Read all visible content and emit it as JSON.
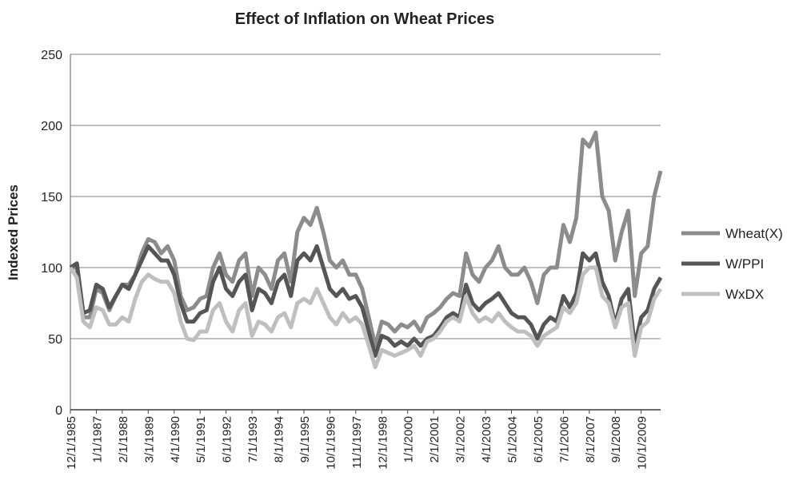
{
  "chart_data": {
    "type": "line",
    "title": "Effect of Inflation on Wheat Prices",
    "y_label": "Indexed Prices",
    "categories": [
      "12/1/1985",
      null,
      null,
      null,
      "1/1/1987",
      null,
      null,
      null,
      "2/1/1988",
      null,
      null,
      null,
      "3/1/1989",
      null,
      null,
      null,
      "4/1/1990",
      null,
      null,
      null,
      "5/1/1991",
      null,
      null,
      null,
      "6/1/1992",
      null,
      null,
      null,
      "7/1/1993",
      null,
      null,
      null,
      "8/1/1994",
      null,
      null,
      null,
      "9/1/1995",
      null,
      null,
      null,
      "10/1/1996",
      null,
      null,
      null,
      "11/1/1997",
      null,
      null,
      null,
      "12/1/1998",
      null,
      null,
      null,
      "1/1/2000",
      null,
      null,
      null,
      "2/1/2001",
      null,
      null,
      null,
      "3/1/2002",
      null,
      null,
      null,
      "4/1/2003",
      null,
      null,
      null,
      "5/1/2004",
      null,
      null,
      null,
      "6/1/2005",
      null,
      null,
      null,
      "7/1/2006",
      null,
      null,
      null,
      "8/1/2007",
      null,
      null,
      null,
      "9/1/2008",
      null,
      null,
      null,
      "10/1/2009",
      null,
      null,
      null
    ],
    "series": [
      {
        "name": "Wheat(X)",
        "color": "#8c8c8c",
        "values": [
          100,
          100,
          65,
          65,
          85,
          82,
          70,
          80,
          88,
          88,
          95,
          110,
          120,
          118,
          110,
          115,
          105,
          80,
          70,
          72,
          78,
          80,
          100,
          110,
          95,
          90,
          105,
          110,
          80,
          100,
          95,
          85,
          105,
          110,
          90,
          125,
          135,
          130,
          142,
          125,
          105,
          100,
          105,
          95,
          95,
          85,
          65,
          45,
          62,
          60,
          55,
          60,
          58,
          62,
          55,
          65,
          68,
          72,
          78,
          82,
          80,
          110,
          95,
          90,
          100,
          105,
          115,
          100,
          95,
          95,
          100,
          90,
          75,
          95,
          100,
          100,
          130,
          118,
          135,
          190,
          185,
          195,
          150,
          140,
          105,
          125,
          140,
          80,
          110,
          115,
          150,
          168
        ]
      },
      {
        "name": "W/PPI",
        "color": "#555555",
        "values": [
          100,
          103,
          68,
          70,
          88,
          85,
          72,
          80,
          88,
          85,
          95,
          105,
          115,
          110,
          105,
          105,
          95,
          75,
          62,
          62,
          68,
          70,
          90,
          100,
          85,
          80,
          90,
          95,
          70,
          85,
          82,
          75,
          90,
          95,
          80,
          105,
          110,
          105,
          115,
          100,
          85,
          80,
          85,
          78,
          80,
          72,
          55,
          38,
          52,
          50,
          45,
          48,
          45,
          50,
          45,
          50,
          52,
          58,
          65,
          68,
          65,
          88,
          75,
          70,
          75,
          78,
          82,
          75,
          68,
          65,
          65,
          60,
          50,
          60,
          65,
          62,
          80,
          72,
          82,
          110,
          105,
          110,
          90,
          80,
          60,
          78,
          85,
          45,
          65,
          70,
          85,
          93
        ]
      },
      {
        "name": "WxDX",
        "color": "#bfbfbf",
        "values": [
          100,
          93,
          62,
          58,
          72,
          70,
          60,
          60,
          65,
          62,
          78,
          90,
          95,
          92,
          90,
          90,
          82,
          62,
          50,
          49,
          55,
          55,
          70,
          75,
          62,
          55,
          70,
          75,
          52,
          62,
          60,
          55,
          65,
          68,
          58,
          75,
          78,
          75,
          85,
          75,
          65,
          60,
          68,
          62,
          65,
          60,
          45,
          30,
          42,
          40,
          38,
          40,
          42,
          45,
          38,
          48,
          50,
          55,
          62,
          65,
          62,
          80,
          68,
          62,
          65,
          62,
          68,
          62,
          58,
          55,
          55,
          52,
          45,
          52,
          55,
          58,
          72,
          68,
          75,
          95,
          100,
          100,
          80,
          75,
          58,
          72,
          75,
          38,
          58,
          62,
          78,
          85
        ]
      }
    ],
    "ylim": [
      0,
      250
    ],
    "yticks": [
      0,
      50,
      100,
      150,
      200,
      250
    ],
    "grid": true,
    "legend": "right"
  }
}
